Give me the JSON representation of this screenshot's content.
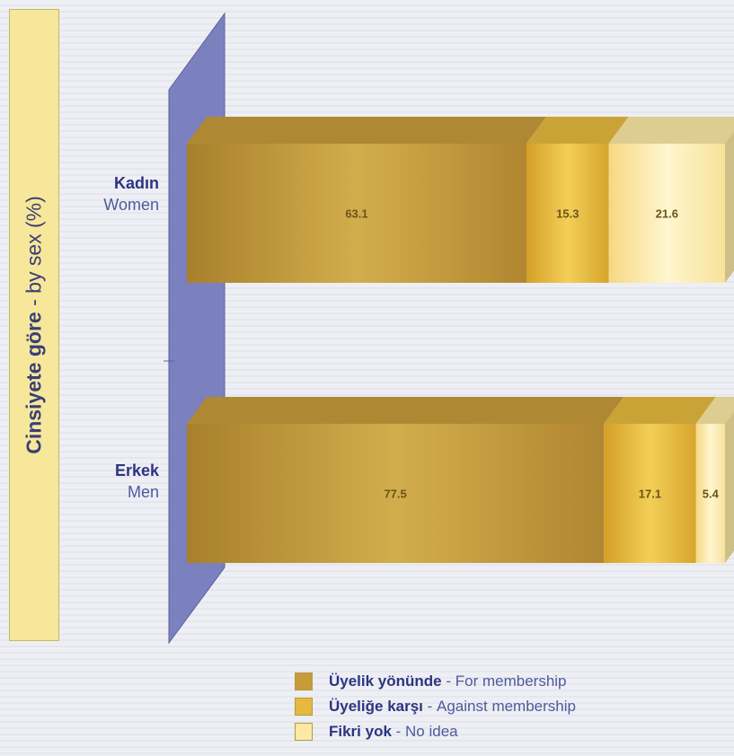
{
  "chart_data": {
    "type": "bar",
    "orientation": "horizontal",
    "stacked": true,
    "percent_scale": 100,
    "title": "Cinsiyete göre - by sex (%)",
    "title_parts": {
      "tr": "Cinsiyete göre",
      "sep": " - ",
      "en": "by sex (%)"
    },
    "categories": [
      {
        "tr": "Kadın",
        "en": "Women"
      },
      {
        "tr": "Erkek",
        "en": "Men"
      }
    ],
    "series": [
      {
        "tr": "Üyelik yönünde",
        "en": "For membership",
        "color": "#c79b3a",
        "values": [
          63.1,
          77.5
        ]
      },
      {
        "tr": "Üyeliğe karşı",
        "en": "Against membership",
        "color": "#e5b93f",
        "values": [
          15.3,
          17.1
        ]
      },
      {
        "tr": "Fikri yok",
        "en": "No idea",
        "color": "#fbe9a4",
        "values": [
          21.6,
          5.4
        ]
      }
    ],
    "legend_position": "bottom"
  }
}
